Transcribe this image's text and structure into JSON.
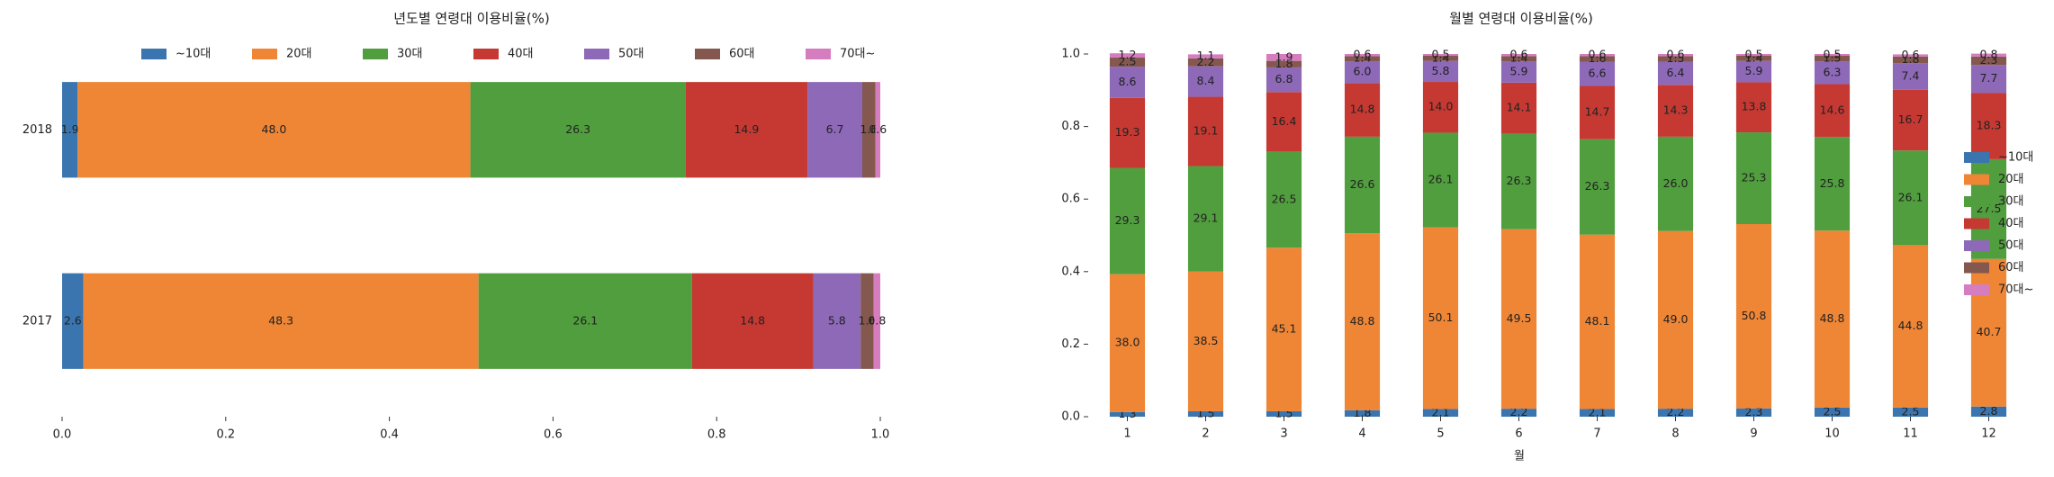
{
  "chart_data": [
    {
      "type": "bar",
      "orientation": "horizontal",
      "stacked": true,
      "title": "년도별 연령대 이용비율(%)",
      "categories": [
        "2018",
        "2017"
      ],
      "legend": "upper center",
      "xlim": [
        0,
        1
      ],
      "xticks": [
        {
          "value": 0,
          "label": "0.0"
        },
        0.2,
        0.4,
        0.6,
        0.8,
        {
          "value": 1,
          "label": "1.0"
        }
      ],
      "series": [
        {
          "name": "~10대",
          "color": "#3a75af",
          "values": [
            0.019,
            0.026
          ],
          "value_labels": [
            "1.9",
            "2.6"
          ]
        },
        {
          "name": "20대",
          "color": "#ef8636",
          "values": [
            0.48,
            0.483
          ],
          "value_labels": [
            "48.0",
            "48.3"
          ]
        },
        {
          "name": "30대",
          "color": "#519e3e",
          "values": [
            0.263,
            0.261
          ],
          "value_labels": [
            "26.3",
            "26.1"
          ]
        },
        {
          "name": "40대",
          "color": "#c53932",
          "values": [
            0.149,
            0.148
          ],
          "value_labels": [
            "14.9",
            "14.8"
          ]
        },
        {
          "name": "50대",
          "color": "#8d69b8",
          "values": [
            0.067,
            0.058
          ],
          "value_labels": [
            "6.7",
            "5.8"
          ]
        },
        {
          "name": "60대",
          "color": "#84584e",
          "values": [
            0.016,
            0.016
          ],
          "value_labels": [
            "1.6",
            "1.6"
          ]
        },
        {
          "name": "70대~",
          "color": "#d57dbf",
          "values": [
            0.006,
            0.008
          ],
          "value_labels": [
            "0.6",
            "0.8"
          ]
        }
      ]
    },
    {
      "type": "bar",
      "orientation": "vertical",
      "stacked": true,
      "title": "월별 연령대 이용비율(%)",
      "x_label": "월",
      "categories": [
        "1",
        "2",
        "3",
        "4",
        "5",
        "6",
        "7",
        "8",
        "9",
        "10",
        "11",
        "12"
      ],
      "legend": "right",
      "ylim": [
        0,
        1
      ],
      "yticks": [
        {
          "value": 0,
          "label": "0.0"
        },
        0.2,
        0.4,
        0.6,
        0.8,
        {
          "value": 1,
          "label": "1.0"
        }
      ],
      "series": [
        {
          "name": "~10대",
          "color": "#3a75af",
          "values": [
            0.013,
            0.015,
            0.015,
            0.018,
            0.021,
            0.022,
            0.021,
            0.022,
            0.023,
            0.025,
            0.025,
            0.028
          ],
          "value_labels": [
            "1.3",
            "1.5",
            "1.5",
            "1.8",
            "2.1",
            "2.2",
            "2.1",
            "2.2",
            "2.3",
            "2.5",
            "2.5",
            "2.8"
          ]
        },
        {
          "name": "20대",
          "color": "#ef8636",
          "values": [
            0.38,
            0.385,
            0.451,
            0.488,
            0.501,
            0.495,
            0.481,
            0.49,
            0.508,
            0.488,
            0.448,
            0.407
          ],
          "value_labels": [
            "38.0",
            "38.5",
            "45.1",
            "48.8",
            "50.1",
            "49.5",
            "48.1",
            "49.0",
            "50.8",
            "48.8",
            "44.8",
            "40.7"
          ]
        },
        {
          "name": "30대",
          "color": "#519e3e",
          "values": [
            0.293,
            0.291,
            0.265,
            0.266,
            0.261,
            0.263,
            0.263,
            0.26,
            0.253,
            0.258,
            0.261,
            0.275
          ],
          "value_labels": [
            "29.3",
            "29.1",
            "26.5",
            "26.6",
            "26.1",
            "26.3",
            "26.3",
            "26.0",
            "25.3",
            "25.8",
            "26.1",
            "27.5"
          ]
        },
        {
          "name": "40대",
          "color": "#c53932",
          "values": [
            0.193,
            0.191,
            0.164,
            0.148,
            0.14,
            0.141,
            0.147,
            0.143,
            0.138,
            0.146,
            0.167,
            0.183
          ],
          "value_labels": [
            "19.3",
            "19.1",
            "16.4",
            "14.8",
            "14.0",
            "14.1",
            "14.7",
            "14.3",
            "13.8",
            "14.6",
            "16.7",
            "18.3"
          ]
        },
        {
          "name": "50대",
          "color": "#8d69b8",
          "values": [
            0.086,
            0.084,
            0.068,
            0.06,
            0.058,
            0.059,
            0.066,
            0.064,
            0.059,
            0.063,
            0.074,
            0.077
          ],
          "value_labels": [
            "8.6",
            "8.4",
            "6.8",
            "6.0",
            "5.8",
            "5.9",
            "6.6",
            "6.4",
            "5.9",
            "6.3",
            "7.4",
            "7.7"
          ]
        },
        {
          "name": "60대",
          "color": "#84584e",
          "values": [
            0.025,
            0.022,
            0.018,
            0.014,
            0.014,
            0.014,
            0.016,
            0.015,
            0.014,
            0.015,
            0.018,
            0.023
          ],
          "value_labels": [
            "2.5",
            "2.2",
            "1.8",
            "1.4",
            "1.4",
            "1.4",
            "1.6",
            "1.5",
            "1.4",
            "1.5",
            "1.8",
            "2.3"
          ]
        },
        {
          "name": "70대~",
          "color": "#d57dbf",
          "values": [
            0.012,
            0.011,
            0.019,
            0.006,
            0.005,
            0.006,
            0.006,
            0.006,
            0.005,
            0.005,
            0.006,
            0.008
          ],
          "value_labels": [
            "1.2",
            "1.1",
            "1.9",
            "0.6",
            "0.5",
            "0.6",
            "0.6",
            "0.6",
            "0.5",
            "0.5",
            "0.6",
            "0.8"
          ]
        }
      ]
    }
  ]
}
